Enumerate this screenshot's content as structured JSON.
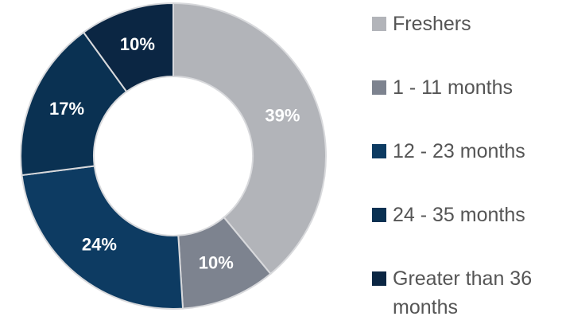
{
  "chart_data": {
    "type": "donut",
    "categories": [
      "Freshers",
      "1 - 11 months",
      "12 - 23 months",
      "24 - 35 months",
      "Greater than 36 months"
    ],
    "values": [
      39,
      10,
      24,
      17,
      10
    ],
    "value_labels": [
      "39%",
      "10%",
      "24%",
      "17%",
      "10%"
    ],
    "colors": [
      "#b2b4b9",
      "#7d838f",
      "#0d3b62",
      "#0a3152",
      "#0b2643"
    ],
    "legend": "right"
  }
}
